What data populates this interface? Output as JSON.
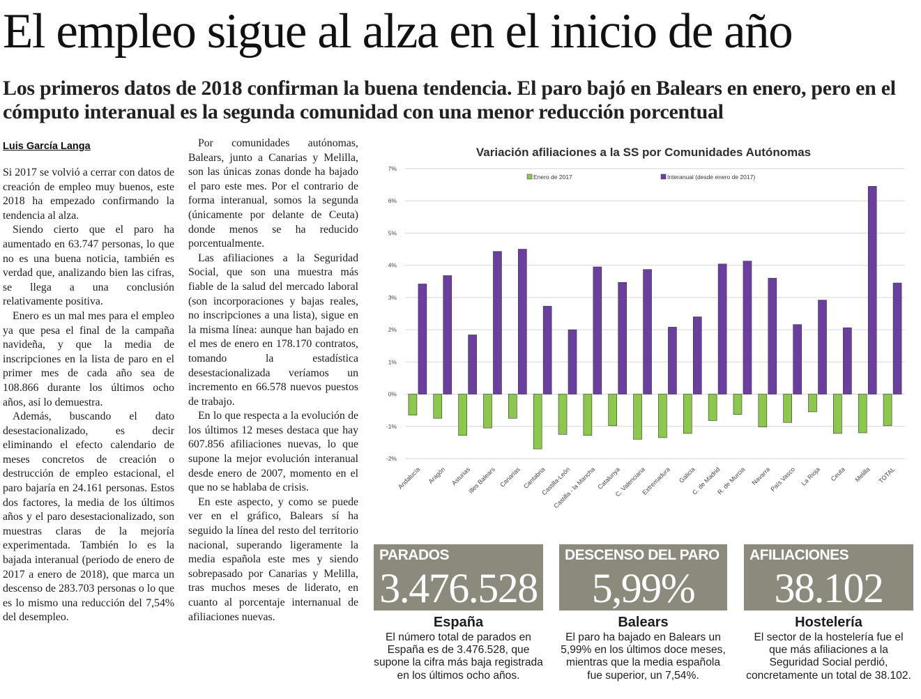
{
  "article": {
    "headline": "El empleo sigue al alza en el inicio de año",
    "subhead": "Los primeros datos de 2018 confirman la buena tendencia. El paro bajó en Balears en enero, pero en el cómputo interanual es la segunda comunidad con una menor reducción porcentual",
    "byline": "Luis García Langa",
    "column1": [
      "Si 2017 se volvió a cerrar con datos de creación de empleo muy buenos, este 2018 ha empezado confirmando la tendencia al alza.",
      "Siendo cierto que el paro ha aumentado en 63.747 personas, lo que no es una buena noticia, también es verdad que, analizando bien las cifras, se llega a una conclusión relativamente positiva.",
      "Enero es un mal mes para el empleo ya que pesa el final de la campaña navideña, y que la media de inscripciones en la lista de paro en el primer mes de cada año sea de 108.866 durante los últimos ocho años, así lo demuestra.",
      "Además, buscando el dato desestacionalizado, es decir eliminando el efecto calendario de meses concretos de creación o destrucción de empleo estacional, el paro bajaría en 24.161 personas. Estos dos factores, la media de los últimos años y el paro desestacionalizado, son muestras claras de la mejoría experimentada. También lo es la bajada interanual (periodo de enero de 2017 a enero de 2018), que marca un descenso de 283.703 personas o lo que es lo mismo una reducción del 7,54% del desempleo."
    ],
    "column2": [
      "Por comunidades autónomas, Balears, junto a Canarias y Melilla, son las únicas zonas donde ha bajado el paro este mes. Por el contrario de forma interanual, somos la segunda (únicamente por delante de Ceuta) donde menos se ha reducido porcentualmente.",
      "Las afiliaciones a la Seguridad Social, que son una muestra más fiable de la salud del mercado laboral (son incorporaciones y bajas reales, no inscripciones a una lista), sigue en la misma línea: aunque han bajado en el mes de enero en 178.170 contratos, tomando la estadística desestacionalizada veríamos un incremento en 66.578 nuevos puestos de trabajo.",
      "En lo que respecta a la evolución de los últimos 12 meses destaca que hay 607.856 afiliaciones nuevas, lo que supone la mejor evolución interanual desde enero de 2007, momento en el que no se hablaba de crisis.",
      "En este aspecto, y como se puede ver en el gráfico, Balears sí ha seguido la línea del resto del territorio nacional, superando ligeramente la media española este mes y siendo sobrepasado por Canarias y Melilla, tras muchos meses de liderato, en cuanto al porcentaje internanual de afiliaciones nuevas."
    ]
  },
  "chart_data": {
    "type": "bar",
    "title": "Variación afiliaciones a la SS por Comunidades Autónomas",
    "categories": [
      "Andalucía",
      "Aragón",
      "Asturias",
      "Illes Balears",
      "Canarias",
      "Cantabria",
      "Castilla-León",
      "Castilla - la Mancha",
      "Catalunya",
      "C. Valenciana",
      "Extremadura",
      "Galicia",
      "C. de Madrid",
      "R. de Murcia",
      "Navarra",
      "País Vasco",
      "La Rioja",
      "Ceuta",
      "Melilla",
      "TOTAL"
    ],
    "series": [
      {
        "name": "Enero de 2017",
        "color": "#8cc84b",
        "values": [
          -0.65,
          -0.75,
          -1.28,
          -1.05,
          -0.75,
          -1.7,
          -1.25,
          -1.28,
          -0.98,
          -1.4,
          -1.35,
          -1.22,
          -0.82,
          -0.63,
          -1.02,
          -0.88,
          -0.55,
          -1.22,
          -1.2,
          -0.98
        ]
      },
      {
        "name": "Interanual (desde enero de 2017)",
        "color": "#6b3fa0",
        "values": [
          3.42,
          3.68,
          1.84,
          4.43,
          4.5,
          2.73,
          2.0,
          3.95,
          3.47,
          3.87,
          2.08,
          2.4,
          4.04,
          4.13,
          3.6,
          2.16,
          2.92,
          2.06,
          6.45,
          3.45
        ]
      }
    ],
    "ylim": [
      -2,
      7
    ],
    "yticks": [
      -2,
      -1,
      0,
      1,
      2,
      3,
      4,
      5,
      6,
      7
    ],
    "ytick_labels": [
      "-2%",
      "-1%",
      "0%",
      "1%",
      "2%",
      "3%",
      "4%",
      "5%",
      "6%",
      "7%"
    ],
    "grid": true,
    "legend_position": "top"
  },
  "stats": [
    {
      "label": "PARADOS",
      "value": "3.476.528",
      "heading": "España",
      "text": "El número total de parados en España es de 3.476.528, que supone la cifra más baja registrada en los últimos ocho años."
    },
    {
      "label": "DESCENSO DEL PARO",
      "value": "5,99%",
      "heading": "Balears",
      "text": "El paro ha bajado en Balears un 5,99% en los últimos doce meses, mientras que la media española fue superior, un 7,54%."
    },
    {
      "label": "AFILIACIONES",
      "value": "38.102",
      "heading": "Hostelería",
      "text": "El sector de la hostelería fue el que más afiliaciones a la Seguridad Social perdió, concretamente un total de 38.102."
    }
  ]
}
